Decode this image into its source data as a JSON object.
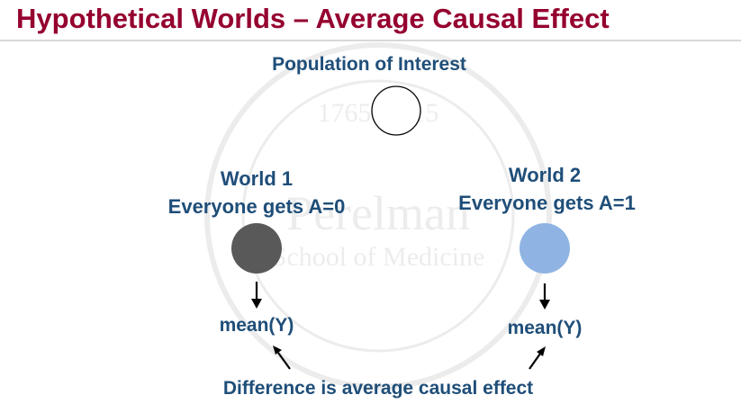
{
  "slide": {
    "title": "Hypothetical Worlds – Average Causal Effect"
  },
  "watermark": {
    "years": "1765–2015",
    "name": "Perelman",
    "school": "School of Medicine"
  },
  "population": {
    "label": "Population of Interest"
  },
  "world1": {
    "name": "World 1",
    "rule": "Everyone gets A=0",
    "mean": "mean(Y)",
    "color": "#595959"
  },
  "world2": {
    "name": "World 2",
    "rule": "Everyone gets A=1",
    "mean": "mean(Y)",
    "color": "#8fb4e3"
  },
  "conclusion": {
    "text": "Difference is average causal effect"
  },
  "colors": {
    "title": "#95002f",
    "text": "#1f4e79",
    "arrow": "#000000"
  }
}
